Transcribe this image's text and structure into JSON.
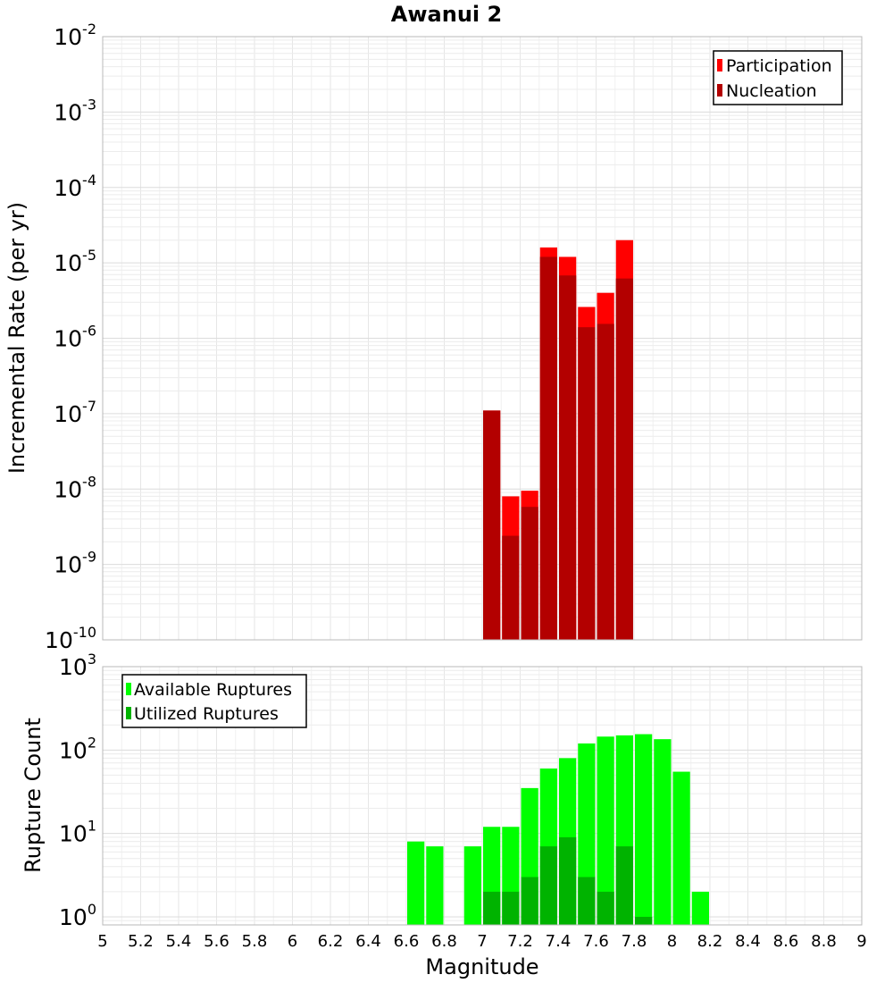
{
  "chart_data": [
    {
      "type": "bar",
      "title": "Awanui 2",
      "ylabel": "Incremental Rate (per yr)",
      "xlabel": "",
      "yscale": "log",
      "ylim": [
        1e-10,
        0.01
      ],
      "xlim": [
        5,
        9
      ],
      "grid": true,
      "legend_position": "top-right",
      "y_ticks": [
        {
          "base": "10",
          "exp": "-10"
        },
        {
          "base": "10",
          "exp": "-9"
        },
        {
          "base": "10",
          "exp": "-8"
        },
        {
          "base": "10",
          "exp": "-7"
        },
        {
          "base": "10",
          "exp": "-6"
        },
        {
          "base": "10",
          "exp": "-5"
        },
        {
          "base": "10",
          "exp": "-4"
        },
        {
          "base": "10",
          "exp": "-3"
        },
        {
          "base": "10",
          "exp": "-2"
        }
      ],
      "series": [
        {
          "name": "Participation",
          "color": "#ff0000",
          "x": [
            7.05,
            7.15,
            7.25,
            7.35,
            7.45,
            7.55,
            7.65,
            7.75
          ],
          "values": [
            1.1e-07,
            8e-09,
            9.5e-09,
            1.6e-05,
            1.2e-05,
            2.6e-06,
            4e-06,
            2e-05
          ]
        },
        {
          "name": "Nucleation",
          "color": "#b30000",
          "x": [
            7.05,
            7.15,
            7.25,
            7.35,
            7.45,
            7.55,
            7.65,
            7.75
          ],
          "values": [
            1.1e-07,
            2.4e-09,
            5.8e-09,
            1.2e-05,
            6.8e-06,
            1.4e-06,
            1.55e-06,
            6.2e-06
          ]
        }
      ]
    },
    {
      "type": "bar",
      "title": "",
      "ylabel": "Rupture Count",
      "xlabel": "Magnitude",
      "yscale": "log",
      "ylim": [
        0.8,
        1000
      ],
      "xlim": [
        5,
        9
      ],
      "grid": true,
      "legend_position": "top-left",
      "x_ticks": [
        "5",
        "5.2",
        "5.4",
        "5.6",
        "5.8",
        "6",
        "6.2",
        "6.4",
        "6.6",
        "6.8",
        "7",
        "7.2",
        "7.4",
        "7.6",
        "7.8",
        "8",
        "8.2",
        "8.4",
        "8.6",
        "8.8",
        "9"
      ],
      "y_ticks": [
        {
          "base": "10",
          "exp": "0"
        },
        {
          "base": "10",
          "exp": "1"
        },
        {
          "base": "10",
          "exp": "2"
        },
        {
          "base": "10",
          "exp": "3"
        }
      ],
      "series": [
        {
          "name": "Available Ruptures",
          "color": "#00ff00",
          "x": [
            6.65,
            6.75,
            6.95,
            7.05,
            7.15,
            7.25,
            7.35,
            7.45,
            7.55,
            7.65,
            7.75,
            7.85,
            7.95,
            8.05,
            8.15
          ],
          "values": [
            8,
            7,
            7,
            12,
            12,
            35,
            60,
            80,
            120,
            145,
            150,
            155,
            135,
            55,
            2
          ]
        },
        {
          "name": "Utilized Ruptures",
          "color": "#00b300",
          "x": [
            7.05,
            7.15,
            7.25,
            7.35,
            7.45,
            7.55,
            7.65,
            7.75,
            7.85
          ],
          "values": [
            2,
            2,
            3,
            7,
            9,
            3,
            2,
            7,
            1
          ]
        }
      ]
    }
  ]
}
